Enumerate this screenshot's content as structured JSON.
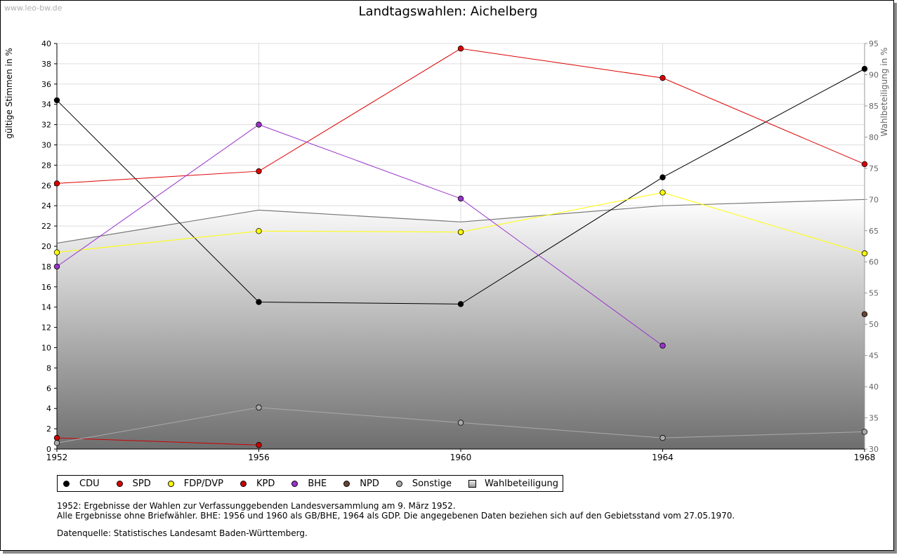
{
  "watermark": "www.leo-bw.de",
  "chart_data": {
    "type": "line",
    "title": "Landtagswahlen: Aichelberg",
    "ylabel": "gültige Stimmen in %",
    "y2label": "Wahlbeteiligung in %",
    "ylim": [
      0,
      40
    ],
    "y2lim": [
      30,
      95
    ],
    "x": [
      1952,
      1956,
      1960,
      1964,
      1968
    ],
    "yticks": [
      "0",
      "2",
      "4",
      "6",
      "8",
      "10",
      "12",
      "14",
      "16",
      "18",
      "20",
      "22",
      "24",
      "26",
      "28",
      "30",
      "32",
      "34",
      "36",
      "38",
      "40"
    ],
    "y2ticks": [
      "30",
      "35",
      "40",
      "45",
      "50",
      "55",
      "60",
      "65",
      "70",
      "75",
      "80",
      "85",
      "90",
      "95"
    ],
    "xticks": [
      "1952",
      "1956",
      "1960",
      "1964",
      "1968"
    ],
    "grid": true,
    "legend_position": "bottom",
    "area": {
      "name": "Wahlbeteiligung",
      "axis": "right",
      "values": [
        63.0,
        68.3,
        66.4,
        69.0,
        70.0
      ]
    },
    "series": [
      {
        "name": "CDU",
        "color": "#000000",
        "values": [
          34.4,
          14.5,
          14.3,
          26.8,
          37.5
        ]
      },
      {
        "name": "SPD",
        "color": "#dd0000",
        "values": [
          26.2,
          27.4,
          39.5,
          36.6,
          28.1
        ]
      },
      {
        "name": "FDP/DVP",
        "color": "#ffff00",
        "values": [
          19.4,
          21.5,
          21.4,
          25.3,
          19.3
        ]
      },
      {
        "name": "KPD",
        "color": "#cc0000",
        "values": [
          1.1,
          0.4,
          null,
          null,
          null
        ]
      },
      {
        "name": "BHE",
        "color": "#9933cc",
        "values": [
          18.0,
          32.0,
          24.7,
          10.2,
          null
        ]
      },
      {
        "name": "NPD",
        "color": "#664433",
        "values": [
          null,
          null,
          null,
          null,
          13.3
        ]
      },
      {
        "name": "Sonstige",
        "color": "#aaaaaa",
        "values": [
          0.6,
          4.1,
          2.6,
          1.1,
          1.7
        ]
      }
    ]
  },
  "legend": [
    "CDU",
    "SPD",
    "FDP/DVP",
    "KPD",
    "BHE",
    "NPD",
    "Sonstige",
    "Wahlbeteiligung"
  ],
  "notes": [
    "1952: Ergebnisse der Wahlen zur Verfassunggebenden Landesversammlung am 9. März 1952.",
    "Alle Ergebnisse ohne Briefwähler. BHE: 1956 und 1960 als GB/BHE, 1964 als GDP. Die angegebenen Daten beziehen sich auf den Gebietsstand vom 27.05.1970."
  ],
  "source": "Datenquelle: Statistisches Landesamt Baden-Württemberg."
}
